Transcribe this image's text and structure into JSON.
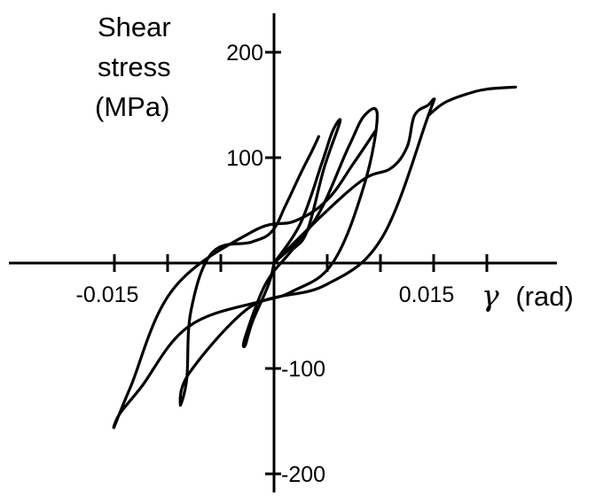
{
  "chart_data": {
    "type": "line",
    "ylabel": [
      "Shear",
      "stress",
      "(MPa)"
    ],
    "xlabel": {
      "symbol": "γ",
      "unit": "(rad)"
    },
    "xlim": [
      -0.02,
      0.0225
    ],
    "ylim": [
      -215,
      235
    ],
    "x_ticks": [
      -0.015,
      -0.01,
      -0.005,
      0.005,
      0.01,
      0.015,
      0.02
    ],
    "x_tick_labels": [
      {
        "value": -0.015,
        "label": "-0.015"
      },
      {
        "value": 0.015,
        "label": "0.015"
      }
    ],
    "y_ticks": [
      200,
      100,
      -100,
      -200
    ],
    "y_tick_labels": [
      {
        "value": 200,
        "label": "200"
      },
      {
        "value": 100,
        "label": "100"
      },
      {
        "value": -100,
        "label": "-100"
      },
      {
        "value": -200,
        "label": "-200"
      }
    ],
    "grid": false,
    "series": [
      {
        "x": [
          0,
          0.0025,
          0.0045,
          0.0055,
          0.0062,
          0.0047,
          0.0031,
          0.0015,
          -0.0008,
          -0.0027,
          -0.0027,
          -0.002,
          -0.0005,
          0
        ],
        "y": [
          0,
          38,
          95,
          125,
          134,
          90,
          30,
          10,
          -20,
          -70,
          -78,
          -55,
          -20,
          0
        ]
      },
      {
        "x": [
          0,
          0.0038,
          0.007,
          0.0085,
          0.0097,
          0.0085,
          0.0055,
          0.0015,
          -0.0027,
          -0.008,
          -0.0088,
          -0.0082,
          -0.0078,
          -0.0058,
          -0.0021,
          -0.0002,
          0.0011,
          0.0025,
          0.0035,
          0.0042
        ],
        "y": [
          0,
          40,
          110,
          140,
          140,
          75,
          0,
          -28,
          -45,
          -105,
          -135,
          -110,
          -45,
          10,
          20,
          30,
          55,
          85,
          105,
          120
        ]
      },
      {
        "x": [
          0,
          0.0048,
          0.0085,
          0.011,
          0.0125,
          0.0132,
          0.0145,
          0.015,
          0.0145,
          0.0102,
          0.005,
          -0.0008,
          -0.008,
          -0.0125,
          -0.0145,
          -0.015,
          -0.0135,
          -0.0095,
          -0.002,
          0.002,
          0.005,
          0.0075,
          0.0095
        ],
        "y": [
          0,
          48,
          80,
          90,
          110,
          140,
          150,
          155,
          140,
          25,
          -20,
          -35,
          -60,
          -118,
          -143,
          -155,
          -118,
          -25,
          30,
          40,
          60,
          95,
          125
        ]
      },
      {
        "x": [
          0.0145,
          0.016,
          0.018,
          0.02,
          0.0227
        ],
        "y": [
          140,
          152,
          160,
          165,
          167
        ]
      }
    ]
  }
}
